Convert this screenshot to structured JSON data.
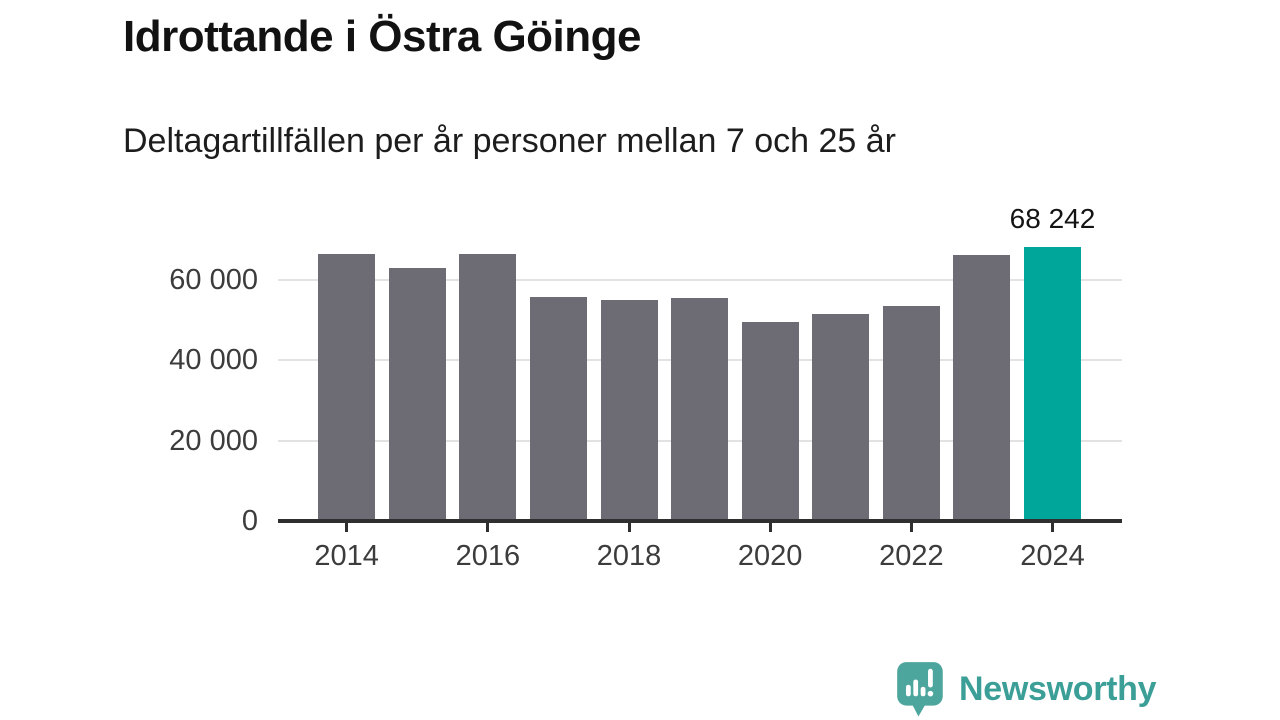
{
  "header": {
    "title": "Idrottande i Östra Göinge",
    "subtitle": "Deltagartillfällen per år personer mellan 7 och 25 år"
  },
  "chart_data": {
    "type": "bar",
    "title": "Idrottande i Östra Göinge",
    "subtitle": "Deltagartillfällen per år personer mellan 7 och 25 år",
    "categories": [
      "2014",
      "2015",
      "2016",
      "2017",
      "2018",
      "2019",
      "2020",
      "2021",
      "2022",
      "2023",
      "2024"
    ],
    "values": [
      66400,
      62900,
      66400,
      55800,
      54900,
      55400,
      49600,
      51600,
      53500,
      66200,
      68242
    ],
    "highlight": {
      "index": 10,
      "category": "2024",
      "value": 68242,
      "label": "68 242",
      "color": "#00a69a"
    },
    "bar_color": "#6d6b74",
    "ylim": [
      0,
      72000
    ],
    "yticks": [
      0,
      20000,
      40000,
      60000
    ],
    "ytick_labels": [
      "0",
      "20 000",
      "40 000",
      "60 000"
    ],
    "xtick_labels": [
      "2014",
      "2016",
      "2018",
      "2020",
      "2022",
      "2024"
    ],
    "grid": "horizontal",
    "gridline_color": "#e2e2e2",
    "axis_color": "#2f2f2f",
    "label_color": "#3c3c3c",
    "legend": "none"
  },
  "branding": {
    "name": "Newsworthy",
    "icon": "speech-bubble-bar-chart-icon",
    "color": "#3b9f97",
    "icon_color": "#4da69e"
  }
}
